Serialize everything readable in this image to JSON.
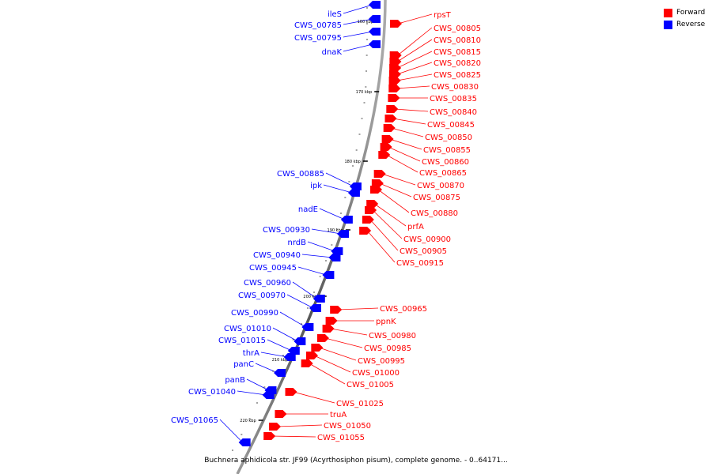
{
  "legend": {
    "forward": {
      "label": "Forward",
      "color": "#ff0000"
    },
    "reverse": {
      "label": "Reverse",
      "color": "#0000ff"
    }
  },
  "caption": "Buchnera aphidicola str. JF99 (Acyrthosiphon pisum), complete genome. - 0..64171...",
  "scale_labels": [
    "160 kbp",
    "170 kbp",
    "180 kbp",
    "190 kbp",
    "200 kbp",
    "210 kbp",
    "220 kbp"
  ],
  "forward_genes": [
    "rpsT",
    "CWS_00805",
    "CWS_00810",
    "CWS_00815",
    "CWS_00820",
    "CWS_00825",
    "CWS_00830",
    "CWS_00835",
    "CWS_00840",
    "CWS_00845",
    "CWS_00850",
    "CWS_00855",
    "CWS_00860",
    "CWS_00865",
    "CWS_00870",
    "CWS_00875",
    "CWS_00880",
    "prfA",
    "CWS_00900",
    "CWS_00905",
    "CWS_00915",
    "CWS_00965",
    "ppnK",
    "CWS_00980",
    "CWS_00985",
    "CWS_00995",
    "CWS_01000",
    "CWS_01005",
    "CWS_01025",
    "truA",
    "CWS_01050",
    "CWS_01055"
  ],
  "reverse_genes": [
    "ileS",
    "CWS_00785",
    "CWS_00795",
    "dnaK",
    "CWS_00885",
    "ipk",
    "nadE",
    "CWS_00930",
    "nrdB",
    "CWS_00940",
    "CWS_00945",
    "CWS_00960",
    "CWS_00970",
    "CWS_00990",
    "CWS_01010",
    "CWS_01015",
    "thrA",
    "panC",
    "panB",
    "CWS_01040",
    "CWS_01065"
  ]
}
